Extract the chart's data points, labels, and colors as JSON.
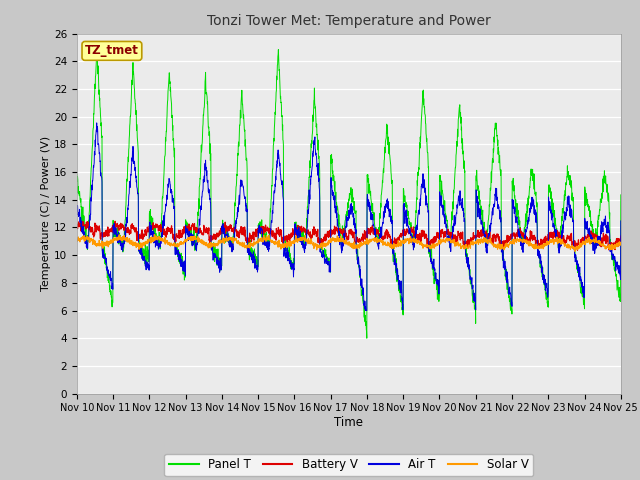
{
  "title": "Tonzi Tower Met: Temperature and Power",
  "xlabel": "Time",
  "ylabel": "Temperature (C) / Power (V)",
  "ylim": [
    0,
    26
  ],
  "yticks": [
    0,
    2,
    4,
    6,
    8,
    10,
    12,
    14,
    16,
    18,
    20,
    22,
    24,
    26
  ],
  "xtick_labels": [
    "Nov 10",
    "Nov 11",
    "Nov 12",
    "Nov 13",
    "Nov 14",
    "Nov 15",
    "Nov 16",
    "Nov 17",
    "Nov 18",
    "Nov 19",
    "Nov 20",
    "Nov 21",
    "Nov 22",
    "Nov 23",
    "Nov 24",
    "Nov 25"
  ],
  "plot_bg_color": "#ebebeb",
  "fig_bg_color": "#c8c8c8",
  "panel_color": "#00dd00",
  "battery_color": "#dd0000",
  "air_color": "#0000dd",
  "solar_color": "#ff9900",
  "legend_items": [
    "Panel T",
    "Battery V",
    "Air T",
    "Solar V"
  ],
  "watermark_text": "TZ_tmet",
  "watermark_color": "#8b0000",
  "watermark_bg": "#ffff99",
  "days": 15,
  "n_points": 2160
}
